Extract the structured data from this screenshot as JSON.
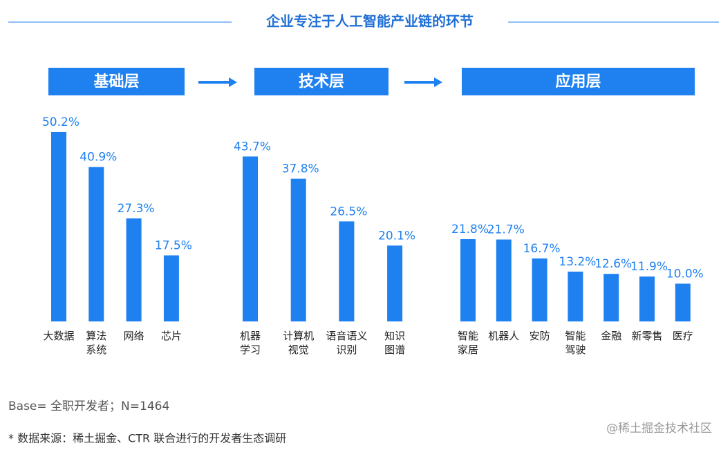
{
  "title": "企业专注于人工智能产业链的环节",
  "chart_data": [
    {
      "type": "bar",
      "title": "基础层",
      "color": "#1f80f0",
      "categories": [
        "大数据",
        "算法\n系统",
        "网络",
        "芯片"
      ],
      "values": [
        50.2,
        40.9,
        27.3,
        17.5
      ],
      "value_labels": [
        "50.2%",
        "40.9%",
        "27.3%",
        "17.5%"
      ]
    },
    {
      "type": "bar",
      "title": "技术层",
      "color": "#1f80f0",
      "categories": [
        "机器\n学习",
        "计算机\n视觉",
        "语音语义\n识别",
        "知识\n图谱"
      ],
      "values": [
        43.7,
        37.8,
        26.5,
        20.1
      ],
      "value_labels": [
        "43.7%",
        "37.8%",
        "26.5%",
        "20.1%"
      ]
    },
    {
      "type": "bar",
      "title": "应用层",
      "color": "#1f80f0",
      "categories": [
        "智能\n家居",
        "机器人",
        "安防",
        "智能\n驾驶",
        "金融",
        "新零售",
        "医疗"
      ],
      "values": [
        21.8,
        21.7,
        16.7,
        13.2,
        12.6,
        11.9,
        10.0
      ],
      "value_labels": [
        "21.8%",
        "21.7%",
        "16.7%",
        "13.2%",
        "12.6%",
        "11.9%",
        "10.0%"
      ]
    }
  ],
  "base": "Base= 全职开发者；N=1464",
  "source": "* 数据来源：稀土掘金、CTR 联合进行的开发者生态调研",
  "watermark": "@稀土掘金技术社区"
}
